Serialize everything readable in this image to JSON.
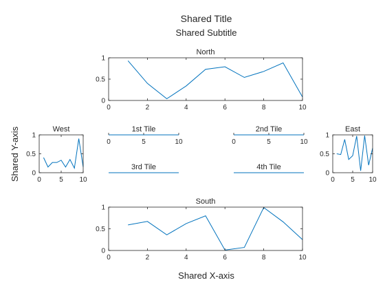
{
  "shared": {
    "title": "Shared Title",
    "subtitle": "Shared Subtitle",
    "xlabel": "Shared X-axis",
    "ylabel": "Shared Y-axis"
  },
  "colors": {
    "line": "#0072BD",
    "axis": "#262626"
  },
  "chart_data": [
    {
      "id": "north",
      "type": "line",
      "title": "North",
      "x": [
        1,
        2,
        3,
        4,
        5,
        6,
        7,
        8,
        9,
        10
      ],
      "y": [
        0.93,
        0.4,
        0.04,
        0.34,
        0.73,
        0.79,
        0.54,
        0.68,
        0.88,
        0.08
      ],
      "xlim": [
        0,
        10
      ],
      "ylim": [
        0,
        1
      ],
      "xticks": [
        0,
        2,
        4,
        6,
        8,
        10
      ],
      "yticks": [
        0,
        0.5,
        1
      ],
      "xtick_labels": [
        "0",
        "2",
        "4",
        "6",
        "8",
        "10"
      ],
      "ytick_labels": [
        "0",
        "0.5",
        "1"
      ]
    },
    {
      "id": "west",
      "type": "line",
      "title": "West",
      "x": [
        1,
        2,
        3,
        4,
        5,
        6,
        7,
        8,
        9,
        10
      ],
      "y": [
        0.4,
        0.15,
        0.27,
        0.27,
        0.33,
        0.15,
        0.35,
        0.12,
        0.9,
        0.15
      ],
      "xlim": [
        0,
        10
      ],
      "ylim": [
        0,
        1
      ],
      "xticks": [
        0,
        5,
        10
      ],
      "yticks": [
        0,
        0.5,
        1
      ],
      "xtick_labels": [
        "0",
        "5",
        "10"
      ],
      "ytick_labels": [
        "0",
        "0.5",
        "1"
      ]
    },
    {
      "id": "tile1",
      "type": "line",
      "title": "1st Tile",
      "x": [
        0,
        10
      ],
      "y": [
        0.5,
        0.5
      ],
      "xlim": [
        0,
        10
      ],
      "ylim": [
        0,
        1
      ],
      "xticks": [
        0,
        5,
        10
      ],
      "yticks": [],
      "xtick_labels": [
        "0",
        "5",
        "10"
      ],
      "ytick_labels": []
    },
    {
      "id": "tile2",
      "type": "line",
      "title": "2nd Tile",
      "x": [
        0,
        10
      ],
      "y": [
        0.5,
        0.5
      ],
      "xlim": [
        0,
        10
      ],
      "ylim": [
        0,
        1
      ],
      "xticks": [
        0,
        5,
        10
      ],
      "yticks": [],
      "xtick_labels": [
        "0",
        "5",
        "10"
      ],
      "ytick_labels": []
    },
    {
      "id": "tile3",
      "type": "line",
      "title": "3rd Tile",
      "x": [
        0,
        10
      ],
      "y": [
        0.5,
        0.5
      ],
      "xlim": [
        0,
        10
      ],
      "ylim": [
        0,
        1
      ],
      "xticks": [],
      "yticks": [],
      "xtick_labels": [],
      "ytick_labels": []
    },
    {
      "id": "tile4",
      "type": "line",
      "title": "4th Tile",
      "x": [
        0,
        10
      ],
      "y": [
        0.5,
        0.5
      ],
      "xlim": [
        0,
        10
      ],
      "ylim": [
        0,
        1
      ],
      "xticks": [],
      "yticks": [],
      "xtick_labels": [],
      "ytick_labels": []
    },
    {
      "id": "east",
      "type": "line",
      "title": "East",
      "x": [
        1,
        2,
        3,
        4,
        5,
        6,
        7,
        8,
        9,
        10
      ],
      "y": [
        0.5,
        0.48,
        0.88,
        0.35,
        0.45,
        0.97,
        0.05,
        0.98,
        0.2,
        0.65
      ],
      "xlim": [
        0,
        10
      ],
      "ylim": [
        0,
        1
      ],
      "xticks": [
        0,
        5,
        10
      ],
      "yticks": [
        0,
        0.5,
        1
      ],
      "xtick_labels": [
        "0",
        "5",
        "10"
      ],
      "ytick_labels": [
        "0",
        "0.5",
        "1"
      ]
    },
    {
      "id": "south",
      "type": "line",
      "title": "South",
      "x": [
        1,
        2,
        3,
        4,
        5,
        6,
        7,
        8,
        9,
        10
      ],
      "y": [
        0.59,
        0.67,
        0.36,
        0.62,
        0.8,
        0.01,
        0.07,
        0.99,
        0.66,
        0.25
      ],
      "xlim": [
        0,
        10
      ],
      "ylim": [
        0,
        1
      ],
      "xticks": [
        0,
        2,
        4,
        6,
        8,
        10
      ],
      "yticks": [
        0,
        0.5,
        1
      ],
      "xtick_labels": [
        "0",
        "2",
        "4",
        "6",
        "8",
        "10"
      ],
      "ytick_labels": [
        "0",
        "0.5",
        "1"
      ]
    }
  ]
}
